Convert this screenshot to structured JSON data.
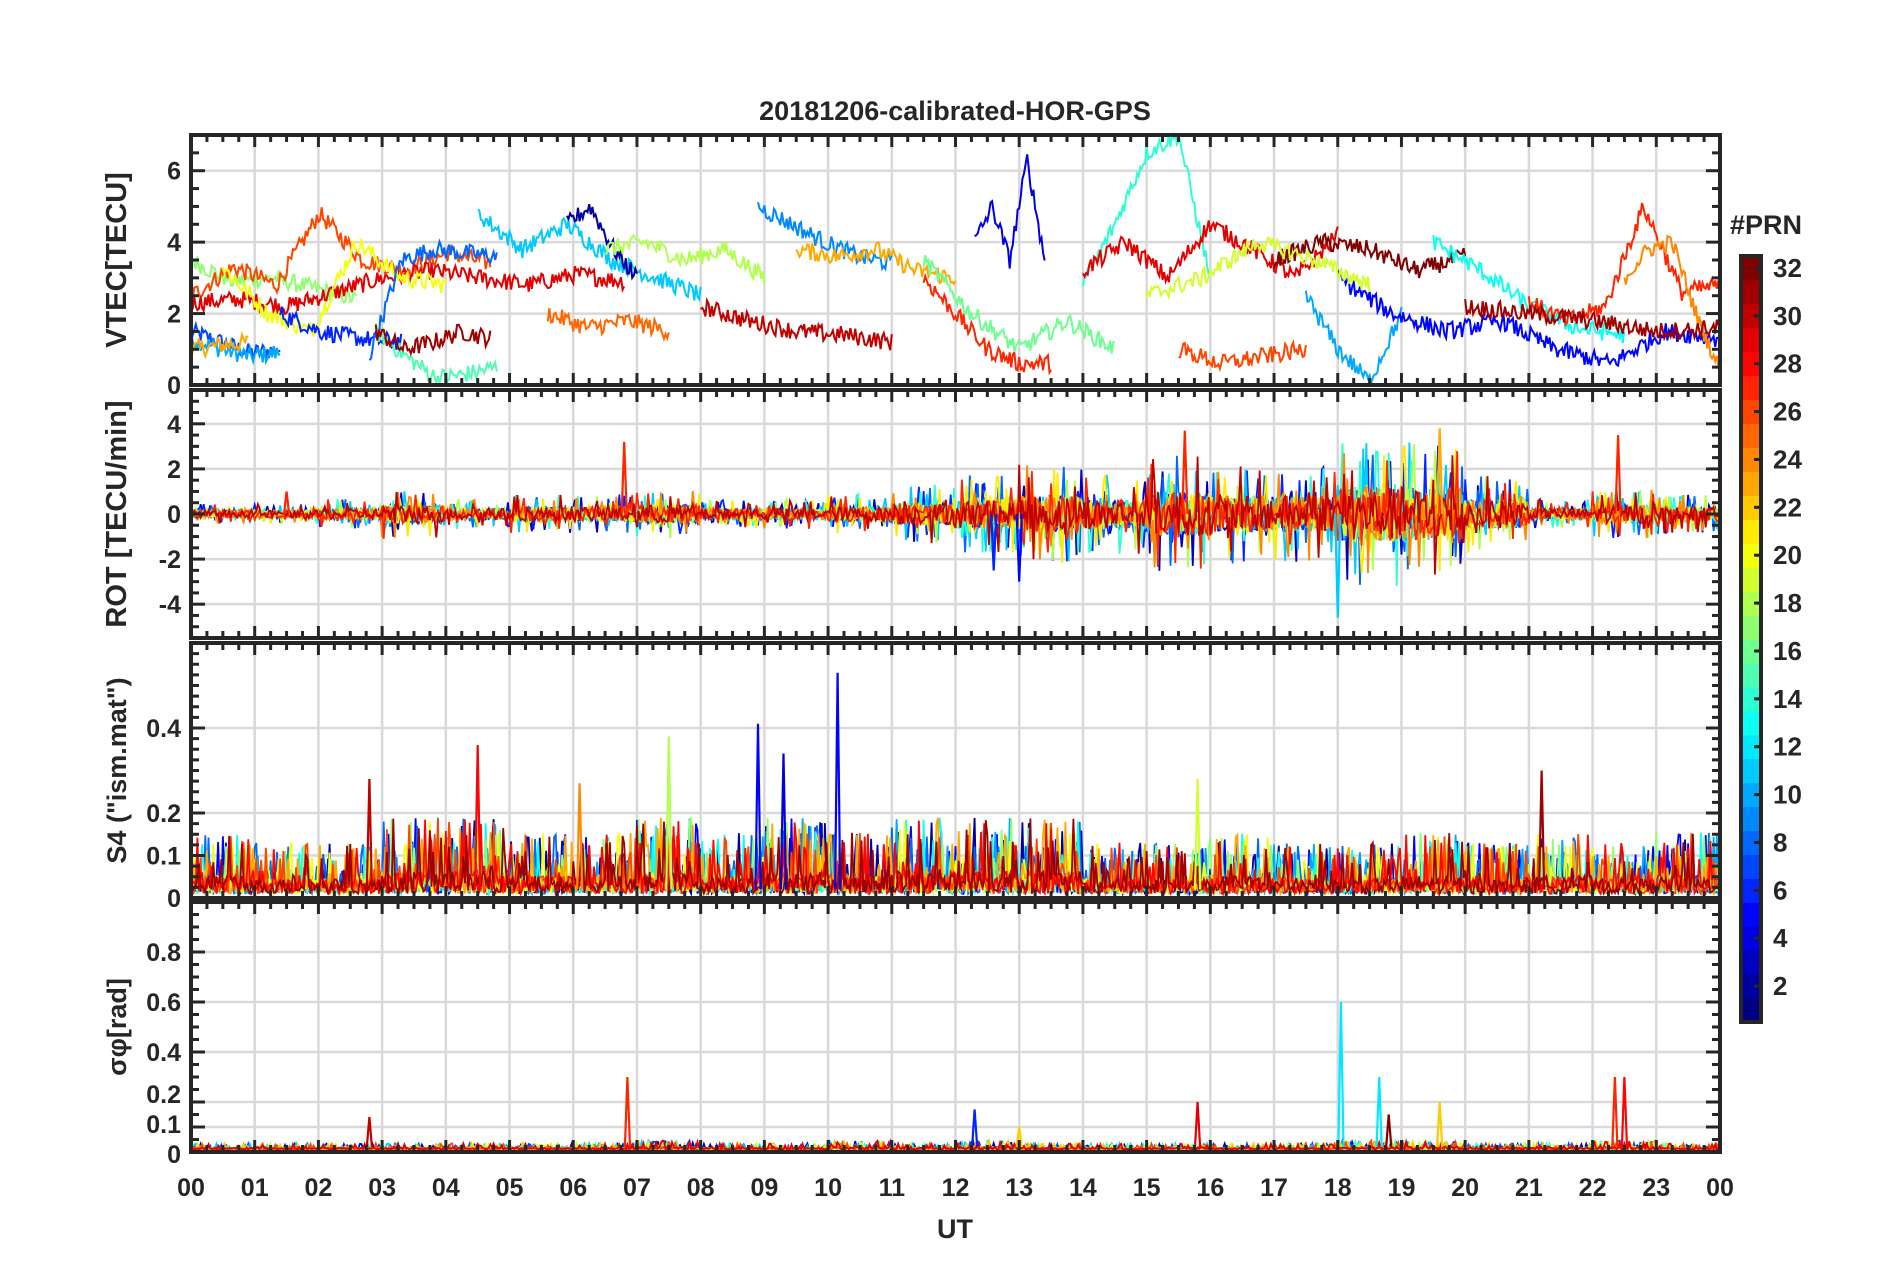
{
  "chart_data": {
    "type": "line",
    "title": "20181206-calibrated-HOR-GPS",
    "xlabel": "UT",
    "x_ticks": [
      "00",
      "01",
      "02",
      "03",
      "04",
      "05",
      "06",
      "07",
      "08",
      "09",
      "10",
      "11",
      "12",
      "13",
      "14",
      "15",
      "16",
      "17",
      "18",
      "19",
      "20",
      "21",
      "22",
      "23",
      "00"
    ],
    "xlim": [
      0,
      24
    ],
    "grid": true,
    "colorbar": {
      "title": "#PRN",
      "range": [
        1,
        32
      ],
      "ticks": [
        "2",
        "4",
        "6",
        "8",
        "10",
        "12",
        "14",
        "16",
        "18",
        "20",
        "22",
        "24",
        "26",
        "28",
        "30",
        "32"
      ],
      "colormap": "jet",
      "placement": "right"
    },
    "panels": [
      {
        "id": "vtec",
        "ylabel": "VTEC[TECU]",
        "ylim": [
          0,
          7
        ],
        "yticks": [
          "0",
          "2",
          "4",
          "6"
        ],
        "ytick_values": [
          0,
          2,
          4,
          6
        ],
        "segments": [
          {
            "prn": 7,
            "t": [
              0,
              1.4
            ],
            "v": [
              1.5,
              1.2,
              0.9,
              1.0
            ]
          },
          {
            "prn": 10,
            "t": [
              0,
              1.4
            ],
            "v": [
              1.3,
              1.0,
              0.8,
              0.9
            ]
          },
          {
            "prn": 23,
            "t": [
              0,
              0.9
            ],
            "v": [
              1.0,
              1.1,
              1.2
            ]
          },
          {
            "prn": 17,
            "t": [
              0,
              2.6
            ],
            "v": [
              3.5,
              2.9,
              3.0,
              2.7,
              2.4
            ]
          },
          {
            "prn": 26,
            "t": [
              0,
              4.7
            ],
            "v": [
              2.5,
              3.3,
              2.8,
              4.8,
              3.5,
              3.2,
              3.7,
              3.4
            ]
          },
          {
            "prn": 29,
            "t": [
              0,
              6.8
            ],
            "v": [
              2.3,
              2.4,
              2.2,
              2.6,
              3.0,
              3.2,
              3.0,
              2.8,
              3.1,
              2.9
            ]
          },
          {
            "prn": 20,
            "t": [
              0.5,
              4
            ],
            "v": [
              3.3,
              2.0,
              1.5,
              4.0,
              3.0,
              2.8
            ]
          },
          {
            "prn": 6,
            "t": [
              1.4,
              3.3
            ],
            "v": [
              2.0,
              1.5,
              1.3,
              1.2
            ]
          },
          {
            "prn": 15,
            "t": [
              2.9,
              4.8
            ],
            "v": [
              1.5,
              0.8,
              0.2,
              0.3,
              0.5
            ]
          },
          {
            "prn": 8,
            "t": [
              2.8,
              4.8
            ],
            "v": [
              0.8,
              3.5,
              3.8,
              3.7,
              3.6
            ]
          },
          {
            "prn": 31,
            "t": [
              2.9,
              4.7
            ],
            "v": [
              1.5,
              1.0,
              1.2,
              1.5,
              1.3
            ]
          },
          {
            "prn": 11,
            "t": [
              4.5,
              8
            ],
            "v": [
              4.8,
              3.8,
              4.5,
              3.5,
              3.0,
              2.5
            ]
          },
          {
            "prn": 2,
            "t": [
              5.9,
              7
            ],
            "v": [
              4.5,
              5.0,
              3.8,
              3.0
            ]
          },
          {
            "prn": 25,
            "t": [
              5.6,
              7.5
            ],
            "v": [
              2.0,
              1.6,
              1.8,
              1.5
            ]
          },
          {
            "prn": 18,
            "t": [
              6.5,
              9
            ],
            "v": [
              3.8,
              4.0,
              3.5,
              3.8,
              3.0
            ]
          },
          {
            "prn": 9,
            "t": [
              8.9,
              11
            ],
            "v": [
              5.0,
              4.5,
              4.0,
              3.6,
              3.4
            ]
          },
          {
            "prn": 30,
            "t": [
              8,
              11
            ],
            "v": [
              2.2,
              1.8,
              1.5,
              1.4,
              1.2
            ]
          },
          {
            "prn": 23,
            "t": [
              9.5,
              12
            ],
            "v": [
              3.8,
              3.6,
              3.8,
              3.2,
              3.0
            ]
          },
          {
            "prn": 4,
            "t": [
              12.3,
              13.4
            ],
            "v": [
              4.0,
              5.0,
              3.5,
              6.3,
              3.5
            ]
          },
          {
            "prn": 27,
            "t": [
              11.5,
              13.5
            ],
            "v": [
              3.0,
              2.0,
              1.0,
              0.6,
              0.6
            ]
          },
          {
            "prn": 14,
            "t": [
              14,
              16
            ],
            "v": [
              2.8,
              4.5,
              6.5,
              7.0,
              3.0
            ]
          },
          {
            "prn": 16,
            "t": [
              11.5,
              14.5
            ],
            "v": [
              3.5,
              2.0,
              1.0,
              1.8,
              1.0
            ]
          },
          {
            "prn": 29,
            "t": [
              14,
              18
            ],
            "v": [
              3.2,
              4.0,
              3.0,
              4.5,
              3.8,
              3.0,
              4.2
            ]
          },
          {
            "prn": 32,
            "t": [
              17,
              20
            ],
            "v": [
              3.5,
              4.0,
              3.8,
              3.2,
              3.6
            ]
          },
          {
            "prn": 10,
            "t": [
              17.5,
              19
            ],
            "v": [
              2.5,
              1.0,
              0.1,
              2.0
            ]
          },
          {
            "prn": 13,
            "t": [
              19.5,
              22.5
            ],
            "v": [
              4.0,
              3.2,
              2.2,
              1.6,
              1.4
            ]
          },
          {
            "prn": 5,
            "t": [
              18,
              24
            ],
            "v": [
              3.0,
              2.0,
              1.5,
              1.8,
              1.0,
              0.6,
              1.5,
              1.3
            ]
          },
          {
            "prn": 27,
            "t": [
              21,
              24
            ],
            "v": [
              2.3,
              1.8,
              2.2,
              5.0,
              2.6,
              2.8
            ]
          },
          {
            "prn": 24,
            "t": [
              22.5,
              24
            ],
            "v": [
              3.0,
              3.8,
              4.0,
              2.0,
              0.4
            ]
          },
          {
            "prn": 31,
            "t": [
              20,
              24
            ],
            "v": [
              2.2,
              2.0,
              1.8,
              1.5,
              1.6
            ]
          },
          {
            "prn": 19,
            "t": [
              15,
              18.5
            ],
            "v": [
              2.5,
              3.0,
              4.0,
              3.5,
              2.8
            ]
          },
          {
            "prn": 26,
            "t": [
              15.5,
              17.5
            ],
            "v": [
              1.0,
              0.6,
              0.8,
              1.0
            ]
          }
        ]
      },
      {
        "id": "rot",
        "ylabel": "ROT [TECU/min]",
        "ylim": [
          -5.5,
          5.5
        ],
        "yticks": [
          "-4",
          "-2",
          "0",
          "2",
          "4"
        ],
        "ytick_values": [
          -4,
          -2,
          0,
          2,
          4
        ],
        "noise_prns": [
          3,
          6,
          8,
          11,
          14,
          18,
          21,
          24,
          27,
          30
        ],
        "hourly_amplitude": [
          0.2,
          0.2,
          0.3,
          0.5,
          0.3,
          0.4,
          0.4,
          0.5,
          0.3,
          0.3,
          0.4,
          0.6,
          0.8,
          1.0,
          0.8,
          1.2,
          1.0,
          1.0,
          1.5,
          1.5,
          0.8,
          0.3,
          0.5,
          0.4
        ],
        "spikes": [
          {
            "t": 6.8,
            "v": 3.2,
            "prn": 27
          },
          {
            "t": 13,
            "v": -3.0,
            "prn": 5
          },
          {
            "t": 15.6,
            "v": 3.7,
            "prn": 27
          },
          {
            "t": 18,
            "v": -4.6,
            "prn": 11
          },
          {
            "t": 19.6,
            "v": 3.8,
            "prn": 23
          },
          {
            "t": 22.4,
            "v": 3.5,
            "prn": 27
          },
          {
            "t": 12.6,
            "v": -2.5,
            "prn": 6
          },
          {
            "t": 1.5,
            "v": 1.0,
            "prn": 27
          }
        ]
      },
      {
        "id": "s4",
        "ylabel": "S4 (\"ism.mat\")",
        "ylim": [
          0,
          0.6
        ],
        "yticks": [
          "0",
          "0.1",
          "0.2",
          "0.4"
        ],
        "ytick_values": [
          0,
          0.1,
          0.2,
          0.4
        ],
        "noise_prns": [
          2,
          5,
          8,
          10,
          13,
          17,
          20,
          23,
          26,
          28,
          31
        ],
        "hourly_amplitude": [
          0.12,
          0.1,
          0.1,
          0.15,
          0.15,
          0.12,
          0.12,
          0.15,
          0.12,
          0.15,
          0.12,
          0.15,
          0.15,
          0.15,
          0.1,
          0.1,
          0.12,
          0.1,
          0.1,
          0.12,
          0.1,
          0.12,
          0.1,
          0.12
        ],
        "spikes": [
          {
            "t": 8.9,
            "v": 0.41,
            "prn": 5
          },
          {
            "t": 10.15,
            "v": 0.53,
            "prn": 5
          },
          {
            "t": 7.5,
            "v": 0.38,
            "prn": 18
          },
          {
            "t": 4.5,
            "v": 0.36,
            "prn": 28
          },
          {
            "t": 9.3,
            "v": 0.34,
            "prn": 4
          },
          {
            "t": 2.8,
            "v": 0.28,
            "prn": 30
          },
          {
            "t": 21.2,
            "v": 0.3,
            "prn": 31
          },
          {
            "t": 15.8,
            "v": 0.28,
            "prn": 19
          },
          {
            "t": 6.1,
            "v": 0.27,
            "prn": 24
          }
        ]
      },
      {
        "id": "sigma",
        "ylabel": "σφ[rad]",
        "ylim": [
          0,
          1.0
        ],
        "yticks": [
          "0",
          "0.1",
          "0.2",
          "0.4",
          "0.6",
          "0.8"
        ],
        "ytick_values": [
          0,
          0.1,
          0.2,
          0.4,
          0.6,
          0.8
        ],
        "noise_prns": [
          3,
          7,
          11,
          15,
          19,
          22,
          26,
          29
        ],
        "hourly_amplitude": [
          0.02,
          0.02,
          0.02,
          0.02,
          0.02,
          0.02,
          0.02,
          0.03,
          0.02,
          0.02,
          0.03,
          0.02,
          0.03,
          0.02,
          0.02,
          0.02,
          0.02,
          0.02,
          0.03,
          0.03,
          0.02,
          0.02,
          0.03,
          0.02
        ],
        "spikes": [
          {
            "t": 6.85,
            "v": 0.3,
            "prn": 27
          },
          {
            "t": 2.8,
            "v": 0.14,
            "prn": 30
          },
          {
            "t": 12.3,
            "v": 0.17,
            "prn": 6
          },
          {
            "t": 15.8,
            "v": 0.2,
            "prn": 29
          },
          {
            "t": 18.05,
            "v": 0.6,
            "prn": 12
          },
          {
            "t": 18.65,
            "v": 0.3,
            "prn": 12
          },
          {
            "t": 19.6,
            "v": 0.2,
            "prn": 22
          },
          {
            "t": 22.35,
            "v": 0.3,
            "prn": 27
          },
          {
            "t": 22.5,
            "v": 0.3,
            "prn": 28
          },
          {
            "t": 18.8,
            "v": 0.15,
            "prn": 32
          },
          {
            "t": 13,
            "v": 0.1,
            "prn": 22
          }
        ]
      }
    ]
  }
}
